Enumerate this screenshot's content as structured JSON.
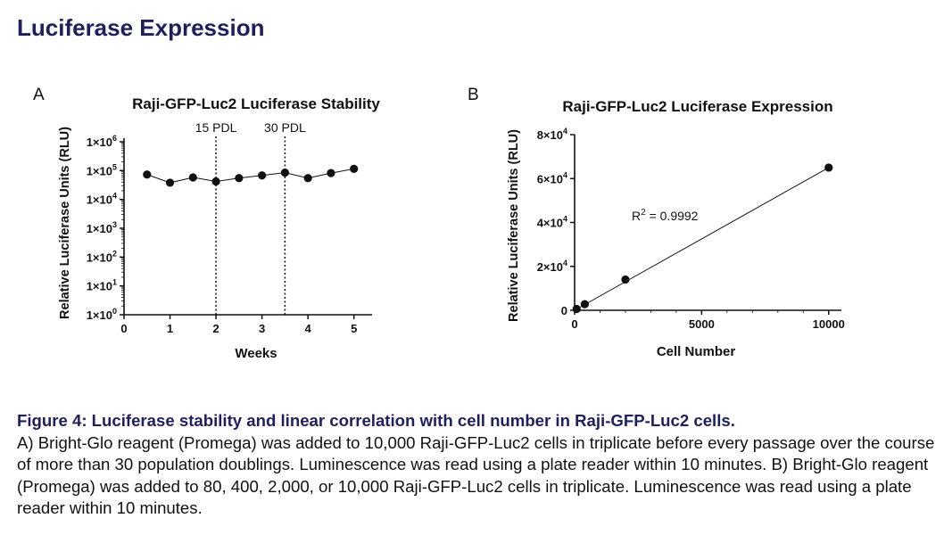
{
  "page": {
    "title": "Luciferase Expression",
    "accent_color": "#1f1f5e"
  },
  "chart_data": [
    {
      "panel": "A",
      "type": "line",
      "title": "Raji-GFP-Luc2 Luciferase Stability",
      "xlabel": "Weeks",
      "ylabel": "Relative Luciferase Units (RLU)",
      "yscale": "log",
      "xlim": [
        0,
        5.2
      ],
      "ylim": [
        1,
        1000000
      ],
      "xticks": [
        0,
        1,
        2,
        3,
        4,
        5
      ],
      "xtick_labels": [
        "0",
        "1",
        "2",
        "3",
        "4",
        "5"
      ],
      "yticks": [
        1,
        10,
        100,
        1000,
        10000,
        100000,
        1000000
      ],
      "ytick_labels": [
        {
          "base": "1×10",
          "exp": "0"
        },
        {
          "base": "1×10",
          "exp": "1"
        },
        {
          "base": "1×10",
          "exp": "2"
        },
        {
          "base": "1×10",
          "exp": "3"
        },
        {
          "base": "1×10",
          "exp": "4"
        },
        {
          "base": "1×10",
          "exp": "5"
        },
        {
          "base": "1×10",
          "exp": "6"
        }
      ],
      "series": [
        {
          "name": "Raji-GFP-Luc2",
          "x": [
            0.5,
            1,
            1.5,
            2,
            2.5,
            3,
            3.5,
            4,
            4.5,
            5
          ],
          "y": [
            73000,
            38000,
            58000,
            42000,
            55000,
            68000,
            85000,
            55000,
            82000,
            115000
          ]
        }
      ],
      "vlines": [
        {
          "x": 2,
          "label": "15 PDL"
        },
        {
          "x": 3.5,
          "label": "30 PDL"
        }
      ]
    },
    {
      "panel": "B",
      "type": "scatter",
      "title": "Raji-GFP-Luc2 Luciferase Expression",
      "xlabel": "Cell Number",
      "ylabel": "Relative Luciferase Units (RLU)",
      "xlim": [
        0,
        10500
      ],
      "ylim": [
        0,
        80000
      ],
      "xticks": [
        0,
        5000,
        10000
      ],
      "xtick_labels": [
        "0",
        "5000",
        "10000"
      ],
      "yticks": [
        0,
        20000,
        40000,
        60000,
        80000
      ],
      "ytick_labels": [
        {
          "base": "0",
          "exp": ""
        },
        {
          "base": "2×10",
          "exp": "4"
        },
        {
          "base": "4×10",
          "exp": "4"
        },
        {
          "base": "6×10",
          "exp": "4"
        },
        {
          "base": "8×10",
          "exp": "4"
        }
      ],
      "series": [
        {
          "name": "Raji-GFP-Luc2",
          "x": [
            80,
            400,
            2000,
            10000
          ],
          "y": [
            600,
            2800,
            14000,
            65000
          ]
        }
      ],
      "fit": {
        "x": [
          0,
          10000
        ],
        "y": [
          0,
          65000
        ]
      },
      "annotation": {
        "base": "R",
        "exp": "2",
        "text": " = 0.9992"
      }
    }
  ],
  "caption": {
    "title": "Figure 4: Luciferase stability and linear correlation with cell number in Raji-GFP-Luc2 cells.",
    "body": "A) Bright-Glo reagent (Promega) was added to 10,000 Raji-GFP-Luc2 cells in triplicate before every passage over the course of more than 30 population doublings. Luminescence was read using a plate reader within 10 minutes. B) Bright-Glo reagent (Promega) was added to 80, 400, 2,000, or 10,000 Raji-GFP-Luc2 cells in triplicate. Luminescence was read using a plate reader within 10 minutes."
  }
}
